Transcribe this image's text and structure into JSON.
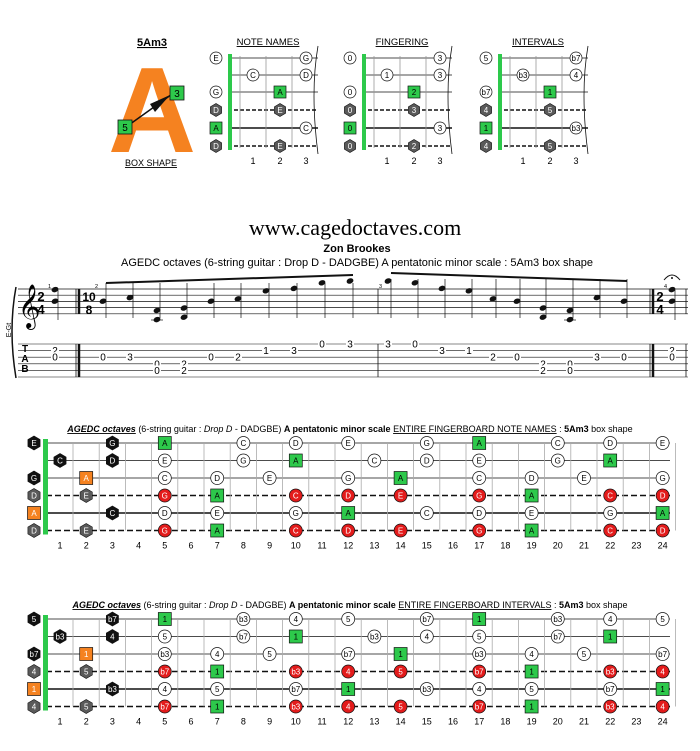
{
  "box": {
    "title": "5Am3",
    "letter": "A",
    "label_left": "5",
    "label_right": "3",
    "caption": "BOX SHAPE"
  },
  "diagrams": [
    {
      "title": "NOTE NAMES",
      "rows": [
        {
          "open": "E",
          "open_style": "white",
          "fret1": "",
          "fret2": "",
          "fret3": "G",
          "fret3_style": "white"
        },
        {
          "open": "",
          "fret1": "C",
          "fret1_style": "white",
          "fret2": "",
          "fret3": "D",
          "fret3_style": "white"
        },
        {
          "open": "G",
          "open_style": "white",
          "fret1": "",
          "fret2": "A",
          "fret2_style": "green",
          "fret3": "",
          "right": "G"
        },
        {
          "open": "D",
          "open_style": "gray",
          "fret1": "",
          "fret2": "E",
          "fret2_style": "gray",
          "fret3": ""
        },
        {
          "open": "A",
          "open_style": "green",
          "fret1": "",
          "fret2": "",
          "fret3": "C",
          "fret3_style": "white"
        },
        {
          "open": "D",
          "open_style": "gray",
          "fret1": "",
          "fret2": "E",
          "fret2_style": "gray",
          "fret3": ""
        }
      ],
      "fret_numbers": [
        "1",
        "2",
        "3"
      ]
    },
    {
      "title": "FINGERING",
      "rows": [
        {
          "open": "0",
          "open_style": "white",
          "fret3": "3",
          "fret3_style": "white"
        },
        {
          "fret1": "1",
          "fret1_style": "white",
          "fret3": "3",
          "fret3_style": "white"
        },
        {
          "open": "0",
          "open_style": "white",
          "fret2": "2",
          "fret2_style": "green"
        },
        {
          "open": "0",
          "open_style": "gray",
          "fret2": "3",
          "fret2_style": "gray"
        },
        {
          "open": "0",
          "open_style": "green",
          "fret3": "3",
          "fret3_style": "white"
        },
        {
          "open": "0",
          "open_style": "gray",
          "fret2": "2",
          "fret2_style": "gray"
        }
      ],
      "fret_numbers": [
        "1",
        "2",
        "3"
      ]
    },
    {
      "title": "INTERVALS",
      "rows": [
        {
          "open": "5",
          "open_style": "white",
          "fret3": "b7",
          "fret3_style": "white"
        },
        {
          "fret1": "b3",
          "fret1_style": "white",
          "fret3": "4",
          "fret3_style": "white"
        },
        {
          "open": "b7",
          "open_style": "white",
          "fret2": "1",
          "fret2_style": "green"
        },
        {
          "open": "4",
          "open_style": "gray",
          "fret2": "5",
          "fret2_style": "gray"
        },
        {
          "open": "1",
          "open_style": "green",
          "fret3": "b3",
          "fret3_style": "white"
        },
        {
          "open": "4",
          "open_style": "gray",
          "fret2": "5",
          "fret2_style": "gray"
        }
      ],
      "fret_numbers": [
        "1",
        "2",
        "3"
      ]
    }
  ],
  "site": "www.cagedoctaves.com",
  "author": "Zon Brookes",
  "subtitle": "AGEDC octaves (6-string guitar : Drop D - DADGBE) A pentatonic minor scale : 5Am3 box shape",
  "score": {
    "clef_label": "E-Gt",
    "time1": [
      "2",
      "4"
    ],
    "time2": [
      "10",
      "8"
    ],
    "time3": [
      "2",
      "4"
    ],
    "measure_numbers": [
      "1",
      "2",
      "3",
      "4"
    ],
    "tab_letters": [
      "T",
      "A",
      "B"
    ],
    "tab_columns": [
      {
        "notes": [
          {
            "s": 2,
            "f": "2"
          },
          {
            "s": 3,
            "f": "0"
          }
        ]
      },
      {
        "notes": [
          {
            "s": 3,
            "f": "0"
          }
        ]
      },
      {
        "notes": [
          {
            "s": 3,
            "f": "3"
          }
        ]
      },
      {
        "notes": [
          {
            "s": 4,
            "f": "0"
          },
          {
            "s": 5,
            "f": "0"
          }
        ]
      },
      {
        "notes": [
          {
            "s": 4,
            "f": "2"
          },
          {
            "s": 5,
            "f": "2"
          }
        ]
      },
      {
        "notes": [
          {
            "s": 3,
            "f": "0"
          }
        ]
      },
      {
        "notes": [
          {
            "s": 3,
            "f": "2"
          }
        ]
      },
      {
        "notes": [
          {
            "s": 2,
            "f": "1"
          }
        ]
      },
      {
        "notes": [
          {
            "s": 2,
            "f": "3"
          }
        ]
      },
      {
        "notes": [
          {
            "s": 1,
            "f": "0"
          }
        ]
      },
      {
        "notes": [
          {
            "s": 1,
            "f": "3"
          }
        ]
      },
      {
        "notes": [
          {
            "s": 1,
            "f": "3"
          }
        ]
      },
      {
        "notes": [
          {
            "s": 1,
            "f": "0"
          }
        ]
      },
      {
        "notes": [
          {
            "s": 2,
            "f": "3"
          }
        ]
      },
      {
        "notes": [
          {
            "s": 2,
            "f": "1"
          }
        ]
      },
      {
        "notes": [
          {
            "s": 3,
            "f": "2"
          }
        ]
      },
      {
        "notes": [
          {
            "s": 3,
            "f": "0"
          }
        ]
      },
      {
        "notes": [
          {
            "s": 4,
            "f": "2"
          },
          {
            "s": 5,
            "f": "2"
          }
        ]
      },
      {
        "notes": [
          {
            "s": 4,
            "f": "0"
          },
          {
            "s": 5,
            "f": "0"
          }
        ]
      },
      {
        "notes": [
          {
            "s": 3,
            "f": "3"
          }
        ]
      },
      {
        "notes": [
          {
            "s": 3,
            "f": "0"
          }
        ]
      },
      {
        "notes": [
          {
            "s": 2,
            "f": "2"
          },
          {
            "s": 3,
            "f": "0"
          }
        ]
      }
    ]
  },
  "boards": [
    {
      "title_parts": {
        "a": "AGEDC octaves",
        "b": " (6-string guitar : ",
        "c": "Drop D",
        "d": " - DADGBE) ",
        "e": "A pentatonic minor scale",
        "f": " ",
        "g": "ENTIRE FINGERBOARD NOTE NAMES",
        "h": " : ",
        "i": "5Am3",
        "j": " box shape"
      },
      "open": [
        {
          "t": "E",
          "st": "black"
        },
        {
          "t": "C",
          "st": "black",
          "fret": 1
        },
        {
          "t": "G",
          "st": "black"
        },
        {
          "t": "D",
          "st": "gray"
        },
        {
          "t": "A",
          "st": "orange"
        },
        {
          "t": "D",
          "st": "gray"
        }
      ]
    },
    {
      "title_parts": {
        "a": "AGEDC octaves",
        "b": " (6-string guitar : ",
        "c": "Drop D",
        "d": " - DADGBE) ",
        "e": "A pentatonic minor scale",
        "f": " ",
        "g": "ENTIRE FINGERBOARD INTERVALS",
        "h": " : ",
        "i": "5Am3",
        "j": " box shape"
      },
      "open": [
        {
          "t": "5",
          "st": "black"
        },
        {
          "t": "b3",
          "st": "black",
          "fret": 1
        },
        {
          "t": "b7",
          "st": "black"
        },
        {
          "t": "4",
          "st": "gray"
        },
        {
          "t": "1",
          "st": "orange"
        },
        {
          "t": "4",
          "st": "gray"
        }
      ]
    }
  ],
  "fret_numbers": [
    "1",
    "2",
    "3",
    "4",
    "5",
    "6",
    "7",
    "8",
    "9",
    "10",
    "11",
    "12",
    "13",
    "14",
    "15",
    "16",
    "17",
    "18",
    "19",
    "20",
    "21",
    "22",
    "23",
    "24"
  ],
  "notes_board": [
    [
      {
        "f": 3,
        "t": "G",
        "st": "black"
      },
      {
        "f": 5,
        "t": "A",
        "st": "green"
      },
      {
        "f": 8,
        "t": "C",
        "st": "white"
      },
      {
        "f": 10,
        "t": "D",
        "st": "white"
      },
      {
        "f": 12,
        "t": "E",
        "st": "white"
      },
      {
        "f": 15,
        "t": "G",
        "st": "white"
      },
      {
        "f": 17,
        "t": "A",
        "st": "green"
      },
      {
        "f": 20,
        "t": "C",
        "st": "white"
      },
      {
        "f": 22,
        "t": "D",
        "st": "white"
      },
      {
        "f": 24,
        "t": "E",
        "st": "white"
      }
    ],
    [
      {
        "f": 3,
        "t": "D",
        "st": "black"
      },
      {
        "f": 5,
        "t": "E",
        "st": "white"
      },
      {
        "f": 8,
        "t": "G",
        "st": "white"
      },
      {
        "f": 10,
        "t": "A",
        "st": "green"
      },
      {
        "f": 13,
        "t": "C",
        "st": "white"
      },
      {
        "f": 15,
        "t": "D",
        "st": "white"
      },
      {
        "f": 17,
        "t": "E",
        "st": "white"
      },
      {
        "f": 20,
        "t": "G",
        "st": "white"
      },
      {
        "f": 22,
        "t": "A",
        "st": "green"
      }
    ],
    [
      {
        "f": 2,
        "t": "A",
        "st": "orange"
      },
      {
        "f": 5,
        "t": "C",
        "st": "white"
      },
      {
        "f": 7,
        "t": "D",
        "st": "white"
      },
      {
        "f": 9,
        "t": "E",
        "st": "white"
      },
      {
        "f": 12,
        "t": "G",
        "st": "white"
      },
      {
        "f": 14,
        "t": "A",
        "st": "green"
      },
      {
        "f": 17,
        "t": "C",
        "st": "white"
      },
      {
        "f": 19,
        "t": "D",
        "st": "white"
      },
      {
        "f": 21,
        "t": "E",
        "st": "white"
      },
      {
        "f": 24,
        "t": "G",
        "st": "white"
      }
    ],
    [
      {
        "f": 2,
        "t": "E",
        "st": "gray"
      },
      {
        "f": 5,
        "t": "G",
        "st": "red"
      },
      {
        "f": 7,
        "t": "A",
        "st": "green"
      },
      {
        "f": 10,
        "t": "C",
        "st": "red"
      },
      {
        "f": 12,
        "t": "D",
        "st": "red"
      },
      {
        "f": 14,
        "t": "E",
        "st": "red"
      },
      {
        "f": 17,
        "t": "G",
        "st": "red"
      },
      {
        "f": 19,
        "t": "A",
        "st": "green"
      },
      {
        "f": 22,
        "t": "C",
        "st": "red"
      },
      {
        "f": 24,
        "t": "D",
        "st": "red"
      }
    ],
    [
      {
        "f": 3,
        "t": "C",
        "st": "black"
      },
      {
        "f": 5,
        "t": "D",
        "st": "white"
      },
      {
        "f": 7,
        "t": "E",
        "st": "white"
      },
      {
        "f": 10,
        "t": "G",
        "st": "white"
      },
      {
        "f": 12,
        "t": "A",
        "st": "green"
      },
      {
        "f": 15,
        "t": "C",
        "st": "white"
      },
      {
        "f": 17,
        "t": "D",
        "st": "white"
      },
      {
        "f": 19,
        "t": "E",
        "st": "white"
      },
      {
        "f": 22,
        "t": "G",
        "st": "white"
      },
      {
        "f": 24,
        "t": "A",
        "st": "green"
      }
    ],
    [
      {
        "f": 2,
        "t": "E",
        "st": "gray"
      },
      {
        "f": 5,
        "t": "G",
        "st": "red"
      },
      {
        "f": 7,
        "t": "A",
        "st": "green"
      },
      {
        "f": 10,
        "t": "C",
        "st": "red"
      },
      {
        "f": 12,
        "t": "D",
        "st": "red"
      },
      {
        "f": 14,
        "t": "E",
        "st": "red"
      },
      {
        "f": 17,
        "t": "G",
        "st": "red"
      },
      {
        "f": 19,
        "t": "A",
        "st": "green"
      },
      {
        "f": 22,
        "t": "C",
        "st": "red"
      },
      {
        "f": 24,
        "t": "D",
        "st": "red"
      }
    ]
  ],
  "intervals_board": [
    [
      {
        "f": 3,
        "t": "b7",
        "st": "black"
      },
      {
        "f": 5,
        "t": "1",
        "st": "green"
      },
      {
        "f": 8,
        "t": "b3",
        "st": "white"
      },
      {
        "f": 10,
        "t": "4",
        "st": "white"
      },
      {
        "f": 12,
        "t": "5",
        "st": "white"
      },
      {
        "f": 15,
        "t": "b7",
        "st": "white"
      },
      {
        "f": 17,
        "t": "1",
        "st": "green"
      },
      {
        "f": 20,
        "t": "b3",
        "st": "white"
      },
      {
        "f": 22,
        "t": "4",
        "st": "white"
      },
      {
        "f": 24,
        "t": "5",
        "st": "white"
      }
    ],
    [
      {
        "f": 3,
        "t": "4",
        "st": "black"
      },
      {
        "f": 5,
        "t": "5",
        "st": "white"
      },
      {
        "f": 8,
        "t": "b7",
        "st": "white"
      },
      {
        "f": 10,
        "t": "1",
        "st": "green"
      },
      {
        "f": 13,
        "t": "b3",
        "st": "white"
      },
      {
        "f": 15,
        "t": "4",
        "st": "white"
      },
      {
        "f": 17,
        "t": "5",
        "st": "white"
      },
      {
        "f": 20,
        "t": "b7",
        "st": "white"
      },
      {
        "f": 22,
        "t": "1",
        "st": "green"
      }
    ],
    [
      {
        "f": 2,
        "t": "1",
        "st": "orange"
      },
      {
        "f": 5,
        "t": "b3",
        "st": "white"
      },
      {
        "f": 7,
        "t": "4",
        "st": "white"
      },
      {
        "f": 9,
        "t": "5",
        "st": "white"
      },
      {
        "f": 12,
        "t": "b7",
        "st": "white"
      },
      {
        "f": 14,
        "t": "1",
        "st": "green"
      },
      {
        "f": 17,
        "t": "b3",
        "st": "white"
      },
      {
        "f": 19,
        "t": "4",
        "st": "white"
      },
      {
        "f": 21,
        "t": "5",
        "st": "white"
      },
      {
        "f": 24,
        "t": "b7",
        "st": "white"
      }
    ],
    [
      {
        "f": 2,
        "t": "5",
        "st": "gray"
      },
      {
        "f": 5,
        "t": "b7",
        "st": "red"
      },
      {
        "f": 7,
        "t": "1",
        "st": "green"
      },
      {
        "f": 10,
        "t": "b3",
        "st": "red"
      },
      {
        "f": 12,
        "t": "4",
        "st": "red"
      },
      {
        "f": 14,
        "t": "5",
        "st": "red"
      },
      {
        "f": 17,
        "t": "b7",
        "st": "red"
      },
      {
        "f": 19,
        "t": "1",
        "st": "green"
      },
      {
        "f": 22,
        "t": "b3",
        "st": "red"
      },
      {
        "f": 24,
        "t": "4",
        "st": "red"
      }
    ],
    [
      {
        "f": 3,
        "t": "b3",
        "st": "black"
      },
      {
        "f": 5,
        "t": "4",
        "st": "white"
      },
      {
        "f": 7,
        "t": "5",
        "st": "white"
      },
      {
        "f": 10,
        "t": "b7",
        "st": "white"
      },
      {
        "f": 12,
        "t": "1",
        "st": "green"
      },
      {
        "f": 15,
        "t": "b3",
        "st": "white"
      },
      {
        "f": 17,
        "t": "4",
        "st": "white"
      },
      {
        "f": 19,
        "t": "5",
        "st": "white"
      },
      {
        "f": 22,
        "t": "b7",
        "st": "white"
      },
      {
        "f": 24,
        "t": "1",
        "st": "green"
      }
    ],
    [
      {
        "f": 2,
        "t": "5",
        "st": "gray"
      },
      {
        "f": 5,
        "t": "b7",
        "st": "red"
      },
      {
        "f": 7,
        "t": "1",
        "st": "green"
      },
      {
        "f": 10,
        "t": "b3",
        "st": "red"
      },
      {
        "f": 12,
        "t": "4",
        "st": "red"
      },
      {
        "f": 14,
        "t": "5",
        "st": "red"
      },
      {
        "f": 17,
        "t": "b7",
        "st": "red"
      },
      {
        "f": 19,
        "t": "1",
        "st": "green"
      },
      {
        "f": 22,
        "t": "b3",
        "st": "red"
      },
      {
        "f": 24,
        "t": "4",
        "st": "red"
      }
    ]
  ],
  "colors": {
    "orange": "#F58220",
    "green": "#2DC94B",
    "red": "#E31B1B",
    "gray": "#5A5A5A",
    "black": "#111111",
    "white": "#FFFFFF"
  }
}
